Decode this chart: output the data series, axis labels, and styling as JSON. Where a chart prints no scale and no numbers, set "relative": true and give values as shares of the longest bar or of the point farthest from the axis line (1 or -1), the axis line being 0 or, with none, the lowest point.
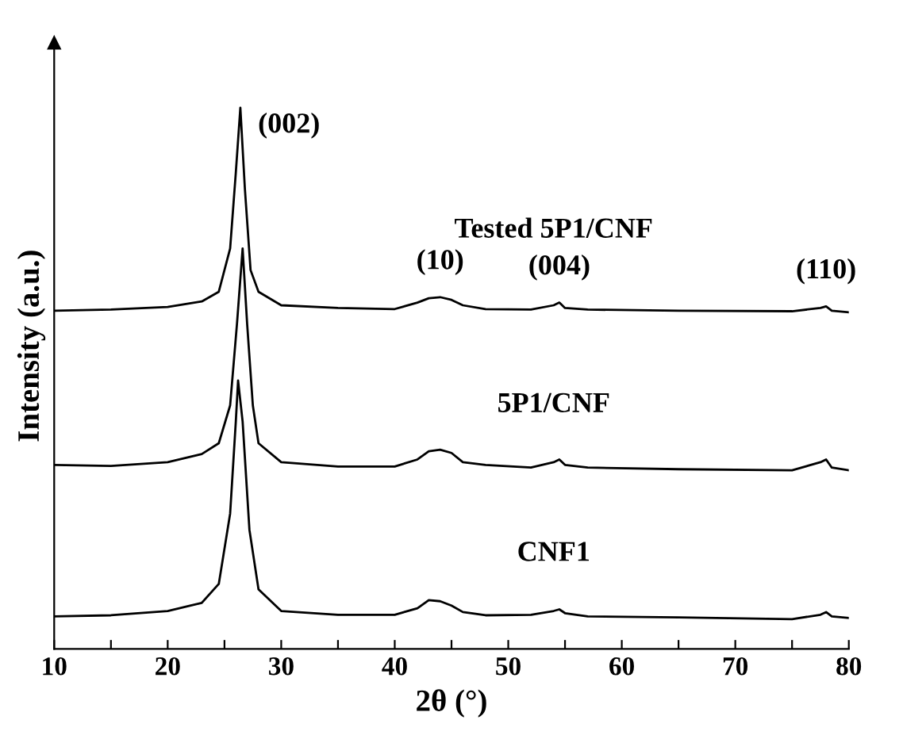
{
  "chart_data": {
    "type": "line",
    "relative": true,
    "xlabel": "2θ (°)",
    "ylabel": "Intensity (a.u.)",
    "xlim": [
      10,
      80
    ],
    "xticks": [
      10,
      {
        "value": 15,
        "label": null
      },
      20,
      {
        "value": 25,
        "label": null
      },
      30,
      {
        "value": 35,
        "label": null
      },
      40,
      {
        "value": 45,
        "label": null
      },
      50,
      {
        "value": 55,
        "label": null
      },
      60,
      {
        "value": 65,
        "label": null
      },
      70,
      {
        "value": 75,
        "label": null
      },
      80
    ],
    "grid": false,
    "legend": false,
    "marker": "none",
    "line_style": "solid",
    "x": [
      10,
      15,
      20,
      23,
      24.5,
      25.5,
      26,
      26.4,
      26.8,
      27.3,
      28,
      30,
      35,
      40,
      42,
      43,
      44,
      45,
      46,
      48,
      52,
      54,
      54.5,
      55,
      57,
      65,
      75,
      77.5,
      78,
      78.5,
      80
    ],
    "series": [
      {
        "name": "Tested 5P1/CNF",
        "color": "#000000",
        "values": [
          0.625,
          0.627,
          0.632,
          0.642,
          0.66,
          0.74,
          0.88,
          1.0,
          0.85,
          0.7,
          0.66,
          0.635,
          0.63,
          0.628,
          0.64,
          0.648,
          0.65,
          0.645,
          0.635,
          0.628,
          0.627,
          0.635,
          0.64,
          0.63,
          0.627,
          0.625,
          0.624,
          0.63,
          0.633,
          0.625,
          0.622
        ]
      },
      {
        "name": "5P1/CNF",
        "color": "#000000",
        "x": [
          10,
          15,
          20,
          23,
          24.5,
          25.5,
          26.1,
          26.6,
          27,
          27.5,
          28,
          30,
          35,
          40,
          42,
          43,
          44,
          45,
          46,
          48,
          52,
          54,
          54.5,
          55,
          57,
          65,
          75,
          77.5,
          78,
          78.5,
          80
        ],
        "values": [
          0.34,
          0.338,
          0.345,
          0.36,
          0.38,
          0.45,
          0.6,
          0.74,
          0.6,
          0.45,
          0.38,
          0.345,
          0.337,
          0.337,
          0.35,
          0.365,
          0.368,
          0.362,
          0.345,
          0.34,
          0.335,
          0.345,
          0.35,
          0.34,
          0.335,
          0.332,
          0.33,
          0.345,
          0.35,
          0.335,
          0.33
        ]
      },
      {
        "name": "CNF1",
        "color": "#000000",
        "x": [
          10,
          15,
          20,
          23,
          24.5,
          25.5,
          26,
          26.2,
          26.6,
          27.2,
          28,
          30,
          35,
          40,
          42,
          43,
          44,
          45,
          46,
          48,
          52,
          54,
          54.5,
          55,
          57,
          65,
          75,
          77.5,
          78,
          78.5,
          80
        ],
        "values": [
          0.06,
          0.062,
          0.07,
          0.085,
          0.12,
          0.25,
          0.42,
          0.496,
          0.42,
          0.22,
          0.11,
          0.07,
          0.063,
          0.063,
          0.075,
          0.09,
          0.088,
          0.08,
          0.068,
          0.062,
          0.063,
          0.07,
          0.073,
          0.066,
          0.06,
          0.058,
          0.055,
          0.063,
          0.068,
          0.06,
          0.057
        ]
      }
    ],
    "annotations": [
      {
        "text": "(002)",
        "x": 26.4,
        "y": 1.0
      },
      {
        "text": "(10)",
        "x": 44,
        "y": 0.65
      },
      {
        "text": "(004)",
        "x": 54.5,
        "y": 0.64
      },
      {
        "text": "(110)",
        "x": 78,
        "y": 0.633
      }
    ]
  }
}
